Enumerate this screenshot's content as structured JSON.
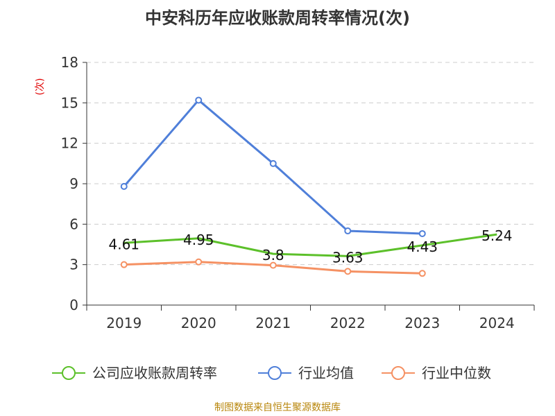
{
  "title": "中安科历年应收账款周转率情况(次)",
  "source": "制图数据来自恒生聚源数据库",
  "chart_data": {
    "type": "line",
    "title": "中安科历年应收账款周转率情况(次)",
    "categories": [
      "2019",
      "2020",
      "2021",
      "2022",
      "2023",
      "2024"
    ],
    "ylabel": "(次)",
    "ylim": [
      0,
      18
    ],
    "yticks": [
      0,
      3,
      6,
      9,
      12,
      15,
      18
    ],
    "grid": true,
    "legend_position": "bottom",
    "series": [
      {
        "name": "公司应收账款周转率",
        "color": "#5cc02a",
        "values": [
          4.61,
          4.95,
          3.8,
          3.63,
          4.43,
          5.24
        ],
        "labels": [
          "4.61",
          "4.95",
          "3.8",
          "3.63",
          "4.43",
          "5.24"
        ]
      },
      {
        "name": "行业均值",
        "color": "#4f7fd9",
        "values": [
          8.8,
          15.2,
          10.5,
          5.5,
          5.3,
          null
        ]
      },
      {
        "name": "行业中位数",
        "color": "#f59163",
        "values": [
          3.0,
          3.2,
          2.95,
          2.5,
          2.35,
          null
        ]
      }
    ]
  }
}
